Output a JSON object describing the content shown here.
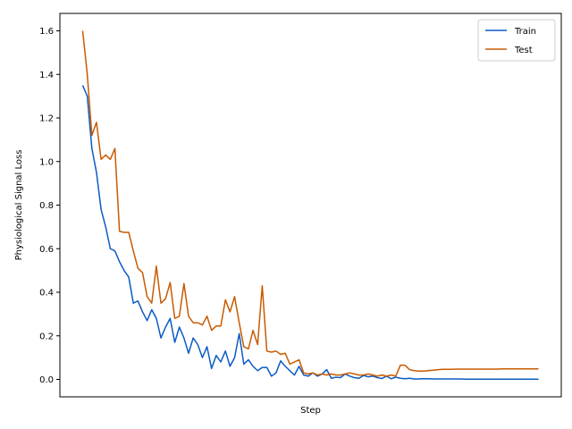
{
  "chart_data": {
    "type": "line",
    "title": "",
    "xlabel": "Step",
    "ylabel": "Physiological Signal Loss",
    "xlim": [
      -4.95,
      103.95
    ],
    "ylim": [
      -0.08,
      1.68
    ],
    "yticks": [
      0.0,
      0.2,
      0.4,
      0.6,
      0.8,
      1.0,
      1.2,
      1.4,
      1.6
    ],
    "ytick_labels": [
      "0.0",
      "0.2",
      "0.4",
      "0.6",
      "0.8",
      "1.0",
      "1.2",
      "1.4",
      "1.6"
    ],
    "legend": {
      "position": "top-right"
    },
    "series": [
      {
        "name": "Train",
        "color": "#0a5bc4",
        "x": [
          0,
          1,
          2,
          3,
          4,
          5,
          6,
          7,
          8,
          9,
          10,
          11,
          12,
          13,
          14,
          15,
          16,
          17,
          18,
          19,
          20,
          21,
          22,
          23,
          24,
          25,
          26,
          27,
          28,
          29,
          30,
          31,
          32,
          33,
          34,
          35,
          36,
          37,
          38,
          39,
          40,
          41,
          42,
          43,
          44,
          45,
          46,
          47,
          48,
          49,
          50,
          51,
          52,
          53,
          54,
          55,
          56,
          57,
          58,
          59,
          60,
          61,
          62,
          63,
          64,
          65,
          66,
          67,
          68,
          69,
          70,
          71,
          72,
          73,
          74,
          75,
          76,
          77,
          78,
          79,
          80,
          81,
          82,
          83,
          84,
          85,
          86,
          87,
          88,
          89,
          90,
          91,
          92,
          93,
          94,
          95,
          96,
          97,
          98,
          99
        ],
        "y": [
          1.35,
          1.3,
          1.06,
          0.95,
          0.78,
          0.7,
          0.6,
          0.59,
          0.54,
          0.5,
          0.47,
          0.35,
          0.36,
          0.31,
          0.27,
          0.32,
          0.28,
          0.19,
          0.24,
          0.28,
          0.17,
          0.24,
          0.19,
          0.12,
          0.19,
          0.16,
          0.1,
          0.15,
          0.05,
          0.11,
          0.08,
          0.13,
          0.06,
          0.1,
          0.21,
          0.07,
          0.09,
          0.06,
          0.04,
          0.055,
          0.055,
          0.015,
          0.03,
          0.085,
          0.06,
          0.04,
          0.02,
          0.06,
          0.02,
          0.015,
          0.03,
          0.015,
          0.025,
          0.045,
          0.005,
          0.01,
          0.008,
          0.025,
          0.015,
          0.008,
          0.005,
          0.018,
          0.012,
          0.015,
          0.008,
          0.004,
          0.015,
          0.003,
          0.01,
          0.005,
          0.003,
          0.005,
          0.002,
          0.002,
          0.003,
          0.003,
          0.002,
          0.002,
          0.002,
          0.002,
          0.002,
          0.002,
          0.002,
          0.001,
          0.001,
          0.001,
          0.001,
          0.001,
          0.001,
          0.001,
          0.001,
          0.001,
          0.001,
          0.001,
          0.001,
          0.001,
          0.001,
          0.001,
          0.001,
          0.001
        ]
      },
      {
        "name": "Test",
        "color": "#c85a00",
        "x": [
          0,
          1,
          2,
          3,
          4,
          5,
          6,
          7,
          8,
          9,
          10,
          11,
          12,
          13,
          14,
          15,
          16,
          17,
          18,
          19,
          20,
          21,
          22,
          23,
          24,
          25,
          26,
          27,
          28,
          29,
          30,
          31,
          32,
          33,
          34,
          35,
          36,
          37,
          38,
          39,
          40,
          41,
          42,
          43,
          44,
          45,
          46,
          47,
          48,
          49,
          50,
          51,
          52,
          53,
          54,
          55,
          56,
          57,
          58,
          59,
          60,
          61,
          62,
          63,
          64,
          65,
          66,
          67,
          68,
          69,
          70,
          71,
          72,
          73,
          74,
          75,
          76,
          77,
          78,
          79,
          80,
          81,
          82,
          83,
          84,
          85,
          86,
          87,
          88,
          89,
          90,
          91,
          92,
          93,
          94,
          95,
          96,
          97,
          98,
          99
        ],
        "y": [
          1.6,
          1.4,
          1.12,
          1.18,
          1.01,
          1.03,
          1.01,
          1.06,
          0.68,
          0.675,
          0.675,
          0.59,
          0.51,
          0.49,
          0.38,
          0.35,
          0.52,
          0.35,
          0.37,
          0.445,
          0.28,
          0.29,
          0.44,
          0.29,
          0.26,
          0.26,
          0.25,
          0.29,
          0.225,
          0.245,
          0.245,
          0.365,
          0.31,
          0.38,
          0.26,
          0.15,
          0.14,
          0.225,
          0.16,
          0.43,
          0.13,
          0.125,
          0.13,
          0.115,
          0.12,
          0.07,
          0.08,
          0.09,
          0.03,
          0.025,
          0.03,
          0.02,
          0.025,
          0.02,
          0.025,
          0.02,
          0.02,
          0.025,
          0.03,
          0.025,
          0.02,
          0.02,
          0.025,
          0.02,
          0.015,
          0.02,
          0.015,
          0.02,
          0.015,
          0.065,
          0.065,
          0.045,
          0.04,
          0.038,
          0.038,
          0.04,
          0.042,
          0.044,
          0.046,
          0.046,
          0.046,
          0.047,
          0.047,
          0.047,
          0.047,
          0.047,
          0.047,
          0.047,
          0.047,
          0.047,
          0.047,
          0.048,
          0.048,
          0.048,
          0.048,
          0.048,
          0.048,
          0.048,
          0.048,
          0.048
        ]
      }
    ]
  }
}
